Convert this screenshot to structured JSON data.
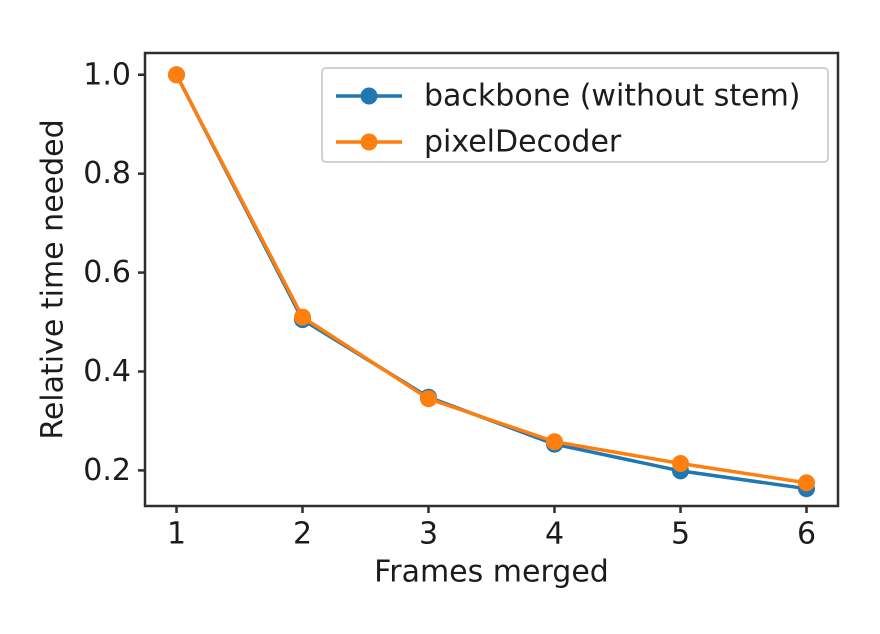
{
  "chart_data": {
    "type": "line",
    "x": [
      1,
      2,
      3,
      4,
      5,
      6
    ],
    "series": [
      {
        "name": "backbone (without stem)",
        "color": "#1f77b4",
        "values": [
          1.0,
          0.505,
          0.348,
          0.253,
          0.199,
          0.163
        ]
      },
      {
        "name": "pixelDecoder",
        "color": "#ff7f0e",
        "values": [
          1.0,
          0.51,
          0.345,
          0.258,
          0.214,
          0.175
        ]
      }
    ],
    "title": "",
    "xlabel": "Frames merged",
    "ylabel": "Relative time needed",
    "xlim": [
      0.75,
      6.25
    ],
    "ylim": [
      0.128,
      1.044
    ],
    "xticks": [
      1,
      2,
      3,
      4,
      5,
      6
    ],
    "xtick_labels": [
      "1",
      "2",
      "3",
      "4",
      "5",
      "6"
    ],
    "yticks": [
      0.2,
      0.4,
      0.6,
      0.8,
      1.0
    ],
    "ytick_labels": [
      "0.2",
      "0.4",
      "0.6",
      "0.8",
      "1.0"
    ],
    "grid": false,
    "legend_position": "upper right",
    "marker": "circle",
    "colors": {
      "axis": "#2e2e2e",
      "text": "#1c1c1c",
      "legend_border": "#cccccc",
      "background": "#ffffff"
    }
  }
}
